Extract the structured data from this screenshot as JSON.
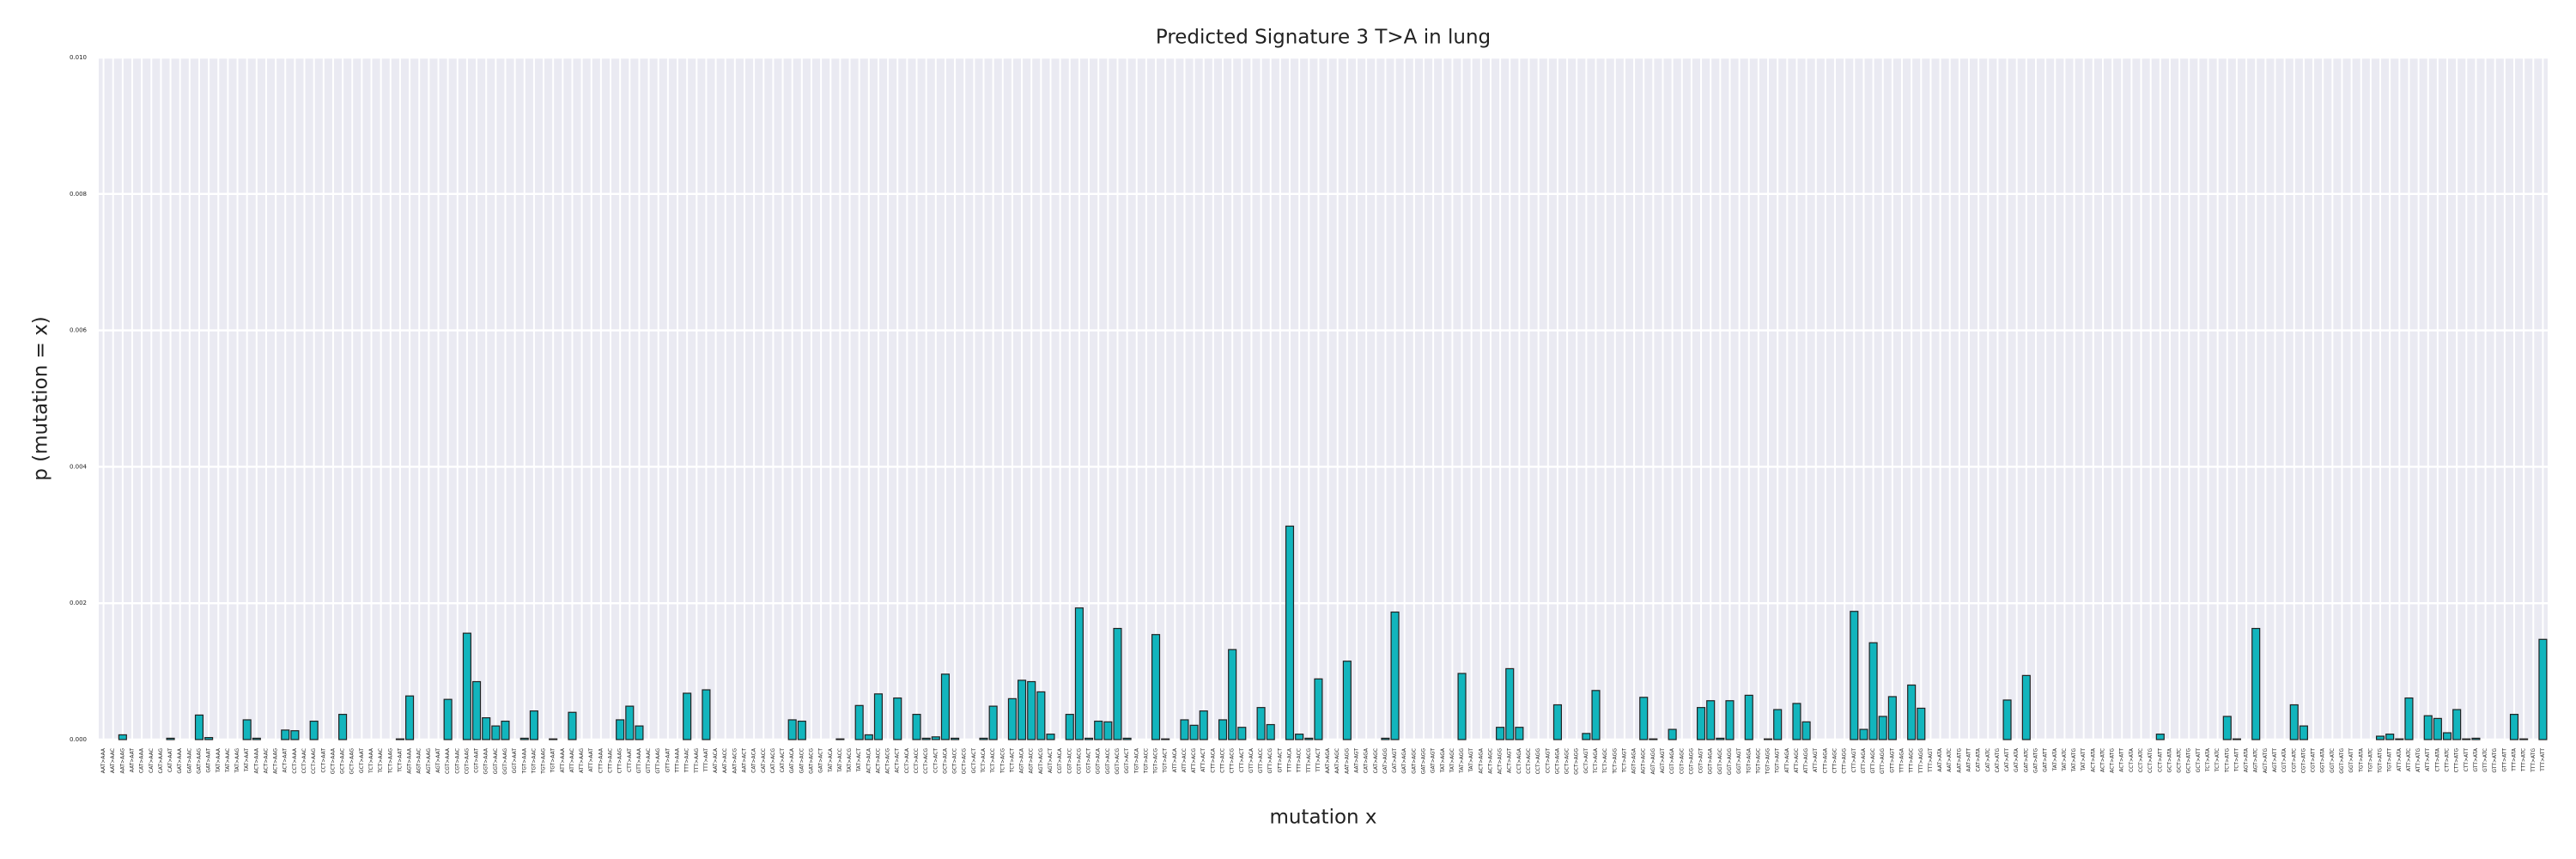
{
  "chart_data": {
    "type": "bar",
    "title": "Predicted Signature 3 T>A in lung",
    "xlabel": "mutation x",
    "ylabel": "p (mutation = x)",
    "color": "#12b5bd",
    "edgecolor": "#222222",
    "grid": true,
    "ylim": [
      0,
      0.01
    ],
    "yticks": [
      {
        "value": 0,
        "label": "0.000"
      },
      {
        "value": 0.002,
        "label": "0.002"
      },
      {
        "value": 0.004,
        "label": "0.004"
      },
      {
        "value": 0.006,
        "label": "0.006"
      },
      {
        "value": 0.008,
        "label": "0.008"
      },
      {
        "value": 0.01,
        "label": "0.010"
      }
    ],
    "categories": [
      "AAT>AAA",
      "AAT>AAC",
      "AAT>AAG",
      "AAT>AAT",
      "CAT>AAA",
      "CAT>AAC",
      "CAT>AAG",
      "CAT>AAT",
      "GAT>AAA",
      "GAT>AAC",
      "GAT>AAG",
      "GAT>AAT",
      "TAT>AAA",
      "TAT>AAC",
      "TAT>AAG",
      "TAT>AAT",
      "ACT>AAA",
      "ACT>AAC",
      "ACT>AAG",
      "ACT>AAT",
      "CCT>AAA",
      "CCT>AAC",
      "CCT>AAG",
      "CCT>AAT",
      "GCT>AAA",
      "GCT>AAC",
      "GCT>AAG",
      "GCT>AAT",
      "TCT>AAA",
      "TCT>AAC",
      "TCT>AAG",
      "TCT>AAT",
      "AGT>AAA",
      "AGT>AAC",
      "AGT>AAG",
      "AGT>AAT",
      "CGT>AAA",
      "CGT>AAC",
      "CGT>AAG",
      "CGT>AAT",
      "GGT>AAA",
      "GGT>AAC",
      "GGT>AAG",
      "GGT>AAT",
      "TGT>AAA",
      "TGT>AAC",
      "TGT>AAG",
      "TGT>AAT",
      "ATT>AAA",
      "ATT>AAC",
      "ATT>AAG",
      "ATT>AAT",
      "CTT>AAA",
      "CTT>AAC",
      "CTT>AAG",
      "CTT>AAT",
      "GTT>AAA",
      "GTT>AAC",
      "GTT>AAG",
      "GTT>AAT",
      "TTT>AAA",
      "TTT>AAC",
      "TTT>AAG",
      "TTT>AAT",
      "AAT>ACA",
      "AAT>ACC",
      "AAT>ACG",
      "AAT>ACT",
      "CAT>ACA",
      "CAT>ACC",
      "CAT>ACG",
      "CAT>ACT",
      "GAT>ACA",
      "GAT>ACC",
      "GAT>ACG",
      "GAT>ACT",
      "TAT>ACA",
      "TAT>ACC",
      "TAT>ACG",
      "TAT>ACT",
      "ACT>ACA",
      "ACT>ACC",
      "ACT>ACG",
      "ACT>ACT",
      "CCT>ACA",
      "CCT>ACC",
      "CCT>ACG",
      "CCT>ACT",
      "GCT>ACA",
      "GCT>ACC",
      "GCT>ACG",
      "GCT>ACT",
      "TCT>ACA",
      "TCT>ACC",
      "TCT>ACG",
      "TCT>ACT",
      "AGT>ACA",
      "AGT>ACC",
      "AGT>ACG",
      "AGT>ACT",
      "CGT>ACA",
      "CGT>ACC",
      "CGT>ACG",
      "CGT>ACT",
      "GGT>ACA",
      "GGT>ACC",
      "GGT>ACG",
      "GGT>ACT",
      "TGT>ACA",
      "TGT>ACC",
      "TGT>ACG",
      "TGT>ACT",
      "ATT>ACA",
      "ATT>ACC",
      "ATT>ACG",
      "ATT>ACT",
      "CTT>ACA",
      "CTT>ACC",
      "CTT>ACG",
      "CTT>ACT",
      "GTT>ACA",
      "GTT>ACC",
      "GTT>ACG",
      "GTT>ACT",
      "TTT>ACA",
      "TTT>ACC",
      "TTT>ACG",
      "TTT>ACT",
      "AAT>AGA",
      "AAT>AGC",
      "AAT>AGG",
      "AAT>AGT",
      "CAT>AGA",
      "CAT>AGC",
      "CAT>AGG",
      "CAT>AGT",
      "GAT>AGA",
      "GAT>AGC",
      "GAT>AGG",
      "GAT>AGT",
      "TAT>AGA",
      "TAT>AGC",
      "TAT>AGG",
      "TAT>AGT",
      "ACT>AGA",
      "ACT>AGC",
      "ACT>AGG",
      "ACT>AGT",
      "CCT>AGA",
      "CCT>AGC",
      "CCT>AGG",
      "CCT>AGT",
      "GCT>AGA",
      "GCT>AGC",
      "GCT>AGG",
      "GCT>AGT",
      "TCT>AGA",
      "TCT>AGC",
      "TCT>AGG",
      "TCT>AGT",
      "AGT>AGA",
      "AGT>AGC",
      "AGT>AGG",
      "AGT>AGT",
      "CGT>AGA",
      "CGT>AGC",
      "CGT>AGG",
      "CGT>AGT",
      "GGT>AGA",
      "GGT>AGC",
      "GGT>AGG",
      "GGT>AGT",
      "TGT>AGA",
      "TGT>AGC",
      "TGT>AGG",
      "TGT>AGT",
      "ATT>AGA",
      "ATT>AGC",
      "ATT>AGG",
      "ATT>AGT",
      "CTT>AGA",
      "CTT>AGC",
      "CTT>AGG",
      "CTT>AGT",
      "GTT>AGA",
      "GTT>AGC",
      "GTT>AGG",
      "GTT>AGT",
      "TTT>AGA",
      "TTT>AGC",
      "TTT>AGG",
      "TTT>AGT",
      "AAT>ATA",
      "AAT>ATC",
      "AAT>ATG",
      "AAT>ATT",
      "CAT>ATA",
      "CAT>ATC",
      "CAT>ATG",
      "CAT>ATT",
      "GAT>ATA",
      "GAT>ATC",
      "GAT>ATG",
      "GAT>ATT",
      "TAT>ATA",
      "TAT>ATC",
      "TAT>ATG",
      "TAT>ATT",
      "ACT>ATA",
      "ACT>ATC",
      "ACT>ATG",
      "ACT>ATT",
      "CCT>ATA",
      "CCT>ATC",
      "CCT>ATG",
      "CCT>ATT",
      "GCT>ATA",
      "GCT>ATC",
      "GCT>ATG",
      "GCT>ATT",
      "TCT>ATA",
      "TCT>ATC",
      "TCT>ATG",
      "TCT>ATT",
      "AGT>ATA",
      "AGT>ATC",
      "AGT>ATG",
      "AGT>ATT",
      "CGT>ATA",
      "CGT>ATC",
      "CGT>ATG",
      "CGT>ATT",
      "GGT>ATA",
      "GGT>ATC",
      "GGT>ATG",
      "GGT>ATT",
      "TGT>ATA",
      "TGT>ATC",
      "TGT>ATG",
      "TGT>ATT",
      "ATT>ATA",
      "ATT>ATC",
      "ATT>ATG",
      "ATT>ATT",
      "CTT>ATA",
      "CTT>ATC",
      "CTT>ATG",
      "CTT>ATT",
      "GTT>ATA",
      "GTT>ATC",
      "GTT>ATG",
      "GTT>ATT",
      "TTT>ATA",
      "TTT>ATC",
      "TTT>ATG",
      "TTT>ATT"
    ],
    "values": [
      0,
      0,
      7e-05,
      0,
      0,
      0,
      0,
      2e-05,
      0,
      0,
      0.00036,
      3e-05,
      0,
      0,
      0,
      0.00029,
      2e-05,
      0,
      0,
      0.00014,
      0.00013,
      0,
      0.00027,
      0,
      0,
      0.00037,
      0,
      0,
      0,
      0,
      0,
      1e-05,
      0.00064,
      0,
      0,
      0,
      0.00059,
      0,
      0.00156,
      0.00085,
      0.00032,
      0.0002,
      0.00027,
      0,
      2e-05,
      0.00042,
      0,
      1e-05,
      0,
      0.0004,
      0,
      0,
      0,
      0,
      0.00029,
      0.00049,
      0.0002,
      0,
      0,
      0,
      0,
      0.00068,
      0,
      0.00073,
      0,
      0,
      0,
      0,
      0,
      0,
      0,
      0,
      0.00029,
      0.00027,
      0,
      0,
      0,
      1e-05,
      0,
      0.0005,
      7e-05,
      0.00067,
      0,
      0.00061,
      0,
      0.00037,
      2e-05,
      4e-05,
      0.00096,
      2e-05,
      0,
      0,
      2e-05,
      0.00049,
      0,
      0.0006,
      0.00087,
      0.00085,
      0.0007,
      8e-05,
      0,
      0.00037,
      0.00193,
      2e-05,
      0.00027,
      0.00026,
      0.00163,
      2e-05,
      0,
      0,
      0.00154,
      1e-05,
      0,
      0.00029,
      0.00021,
      0.00042,
      0,
      0.00029,
      0.00132,
      0.00018,
      0,
      0.00047,
      0.00022,
      0,
      0.00313,
      8e-05,
      2e-05,
      0.00089,
      0,
      0,
      0.00115,
      0,
      0,
      0,
      2e-05,
      0.00187,
      0,
      0,
      0,
      0,
      0,
      0,
      0.00097,
      0,
      0,
      0,
      0.00018,
      0.00104,
      0.00018,
      0,
      0,
      0,
      0.00051,
      0,
      0,
      9e-05,
      0.00072,
      0,
      0,
      0,
      0,
      0.00062,
      1e-05,
      0,
      0.00015,
      0,
      0,
      0.00047,
      0.00057,
      2e-05,
      0.00057,
      0,
      0.00065,
      0,
      1e-05,
      0.00044,
      0,
      0.00053,
      0.00026,
      0,
      0,
      0,
      0,
      0.00188,
      0.00015,
      0.00142,
      0.00034,
      0.00063,
      0,
      0.0008,
      0.00046,
      0,
      0,
      0,
      0,
      0,
      0,
      0,
      0,
      0.00058,
      0,
      0.00094,
      0,
      0,
      0,
      0,
      0,
      0,
      0,
      0,
      0,
      0,
      0,
      0,
      0,
      8e-05,
      0,
      0,
      0,
      0,
      0,
      0,
      0.00034,
      1e-05,
      0,
      0.00163,
      0,
      0,
      0,
      0.00051,
      0.0002,
      0,
      0,
      0,
      0,
      0,
      0,
      0,
      5e-05,
      8e-05,
      1e-05,
      0.00061,
      0,
      0.00035,
      0.00031,
      0.0001,
      0.00044,
      1e-05,
      2e-05,
      0,
      0,
      0,
      0.00037,
      1e-05,
      0,
      0.00147
    ]
  }
}
